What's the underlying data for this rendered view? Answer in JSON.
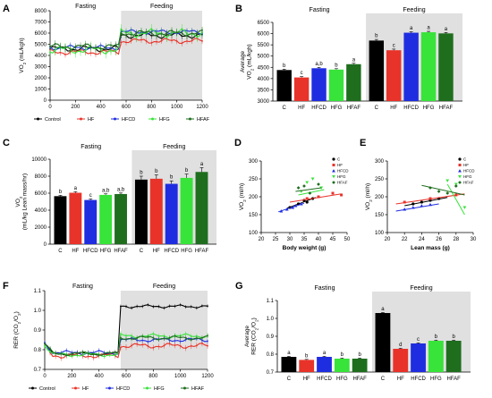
{
  "figure": {
    "panel_letters": [
      "A",
      "B",
      "C",
      "D",
      "E",
      "F",
      "G"
    ],
    "colors": {
      "Control": "#000000",
      "C": "#000000",
      "HF": "#e8332a",
      "HFCD": "#1f2de0",
      "HFG": "#38e33a",
      "HFAF": "#1e6e1e"
    }
  },
  "chart_data": [
    {
      "id": "A",
      "type": "line",
      "titles": [
        "Fasting",
        "Feeding"
      ],
      "ylabel": "VO2 (mL/kgh)",
      "ylim": [
        0,
        8000
      ],
      "yticks": [
        0,
        1000,
        2000,
        3000,
        4000,
        5000,
        6000,
        7000,
        8000
      ],
      "xlim": [
        0,
        1200
      ],
      "xticks": [
        0,
        200,
        400,
        600,
        800,
        1000,
        1200
      ],
      "shaded_from": 560,
      "legend": [
        "Control",
        "HF",
        "HFCD",
        "HFG",
        "HFAF"
      ],
      "series": [
        {
          "name": "Control",
          "base_fast": 4600,
          "base_feed": 5800,
          "err": 500
        },
        {
          "name": "HF",
          "base_fast": 4300,
          "base_feed": 5300,
          "err": 450
        },
        {
          "name": "HFCD",
          "base_fast": 4700,
          "base_feed": 6100,
          "err": 400
        },
        {
          "name": "HFG",
          "base_fast": 4500,
          "base_feed": 6000,
          "err": 700
        },
        {
          "name": "HFAF",
          "base_fast": 4800,
          "base_feed": 6000,
          "err": 500
        }
      ]
    },
    {
      "id": "B",
      "type": "bar",
      "titles": [
        "Fasting",
        "Feeding"
      ],
      "ylabel": [
        "Average",
        "VO2 (mL/kgh)"
      ],
      "ylim": [
        3000,
        6500
      ],
      "yticks": [
        3000,
        3500,
        4000,
        4500,
        5000,
        5500,
        6000,
        6500
      ],
      "categories": [
        "C",
        "HF",
        "HFCD",
        "HFG",
        "HFAF",
        "C",
        "HF",
        "HFCD",
        "HFG",
        "HFAF"
      ],
      "values": [
        4380,
        4050,
        4460,
        4400,
        4640,
        5690,
        5260,
        6040,
        6060,
        6010
      ],
      "errors": [
        40,
        40,
        40,
        40,
        40,
        50,
        50,
        40,
        40,
        40
      ],
      "labels": [
        "b",
        "c",
        "a,b",
        "b",
        "a",
        "b",
        "c",
        "a",
        "a",
        "a"
      ]
    },
    {
      "id": "C",
      "type": "bar",
      "titles": [
        "Fasting",
        "Feeding"
      ],
      "ylabel": [
        "VO2",
        "(mL/kg Lean mass/hr)"
      ],
      "ylim": [
        0,
        10000
      ],
      "yticks": [
        0,
        2000,
        4000,
        6000,
        8000,
        10000
      ],
      "categories": [
        "C",
        "HF",
        "HFCD",
        "HFG",
        "HFAF",
        "C",
        "HF",
        "HFCD",
        "HFG",
        "HFAF"
      ],
      "values": [
        5650,
        6050,
        5200,
        5800,
        5900,
        7600,
        7700,
        7100,
        7800,
        8500
      ],
      "errors": [
        100,
        120,
        120,
        120,
        120,
        400,
        450,
        350,
        450,
        500
      ],
      "labels": [
        "b",
        "a",
        "c",
        "a,b",
        "a,b",
        "b",
        "b",
        "b",
        "b",
        "a"
      ]
    },
    {
      "id": "D",
      "type": "scatter",
      "xlabel": "Body weight (g)",
      "ylabel": "VO2 (ml/h)",
      "xlim": [
        20,
        50
      ],
      "xticks": [
        20,
        25,
        30,
        35,
        40,
        45,
        50
      ],
      "ylim": [
        100,
        300
      ],
      "yticks": [
        100,
        150,
        200,
        250,
        300
      ],
      "legend": [
        "C",
        "HF",
        "HFCD",
        "HFG",
        "HFAF"
      ],
      "series": [
        {
          "name": "C",
          "points": [
            [
              30,
              170
            ],
            [
              33,
              180
            ],
            [
              35,
              190
            ],
            [
              36,
              185
            ],
            [
              38,
              195
            ]
          ],
          "line": [
            [
              29,
              168
            ],
            [
              39,
              198
            ]
          ]
        },
        {
          "name": "HF",
          "points": [
            [
              36,
              195
            ],
            [
              40,
              200
            ],
            [
              45,
              210
            ],
            [
              48,
              205
            ]
          ],
          "line": [
            [
              30,
              185
            ],
            [
              48,
              208
            ]
          ]
        },
        {
          "name": "HFCD",
          "points": [
            [
              27,
              160
            ],
            [
              29,
              165
            ],
            [
              31,
              170
            ],
            [
              32,
              175
            ],
            [
              34,
              180
            ]
          ],
          "line": [
            [
              26,
              158
            ],
            [
              35,
              182
            ]
          ]
        },
        {
          "name": "HFG",
          "points": [
            [
              34,
              215
            ],
            [
              36,
              240
            ],
            [
              38,
              250
            ],
            [
              41,
              225
            ]
          ],
          "line": [
            [
              33,
              205
            ],
            [
              42,
              220
            ]
          ]
        },
        {
          "name": "HFAF",
          "points": [
            [
              33,
              225
            ],
            [
              35,
              230
            ],
            [
              37,
              210
            ],
            [
              40,
              235
            ]
          ],
          "line": [
            [
              32,
              215
            ],
            [
              41,
              225
            ]
          ]
        }
      ]
    },
    {
      "id": "E",
      "type": "scatter",
      "xlabel": "Lean mass (g)",
      "ylabel": "VO2 (ml/h)",
      "xlim": [
        20,
        30
      ],
      "xticks": [
        20,
        22,
        24,
        26,
        28,
        30
      ],
      "ylim": [
        100,
        300
      ],
      "yticks": [
        100,
        150,
        200,
        250,
        300
      ],
      "legend": [
        "C",
        "HF",
        "HFCD",
        "HFG",
        "HFAF"
      ],
      "series": [
        {
          "name": "C",
          "points": [
            [
              23,
              180
            ],
            [
              24,
              185
            ],
            [
              25,
              190
            ],
            [
              26,
              195
            ]
          ],
          "line": [
            [
              22,
              175
            ],
            [
              27,
              198
            ]
          ]
        },
        {
          "name": "HF",
          "points": [
            [
              22,
              185
            ],
            [
              25,
              195
            ],
            [
              28,
              205
            ]
          ],
          "line": [
            [
              21,
              180
            ],
            [
              29,
              208
            ]
          ]
        },
        {
          "name": "HFCD",
          "points": [
            [
              22,
              165
            ],
            [
              23,
              170
            ],
            [
              24,
              175
            ],
            [
              25,
              178
            ]
          ],
          "line": [
            [
              21,
              160
            ],
            [
              26,
              180
            ]
          ]
        },
        {
          "name": "HFG",
          "points": [
            [
              27,
              245
            ],
            [
              28,
              235
            ],
            [
              29,
              170
            ]
          ],
          "line": [
            [
              27,
              235
            ],
            [
              29,
              150
            ]
          ]
        },
        {
          "name": "HFAF",
          "points": [
            [
              25,
              225
            ],
            [
              26,
              215
            ],
            [
              27,
              210
            ],
            [
              28,
              230
            ]
          ],
          "line": [
            [
              24,
              232
            ],
            [
              29,
              205
            ]
          ]
        }
      ]
    },
    {
      "id": "F",
      "type": "line",
      "titles": [
        "Fasting",
        "Feeding"
      ],
      "ylabel": "RER (CO2/O2)",
      "ylim": [
        0.7,
        1.1
      ],
      "yticks": [
        0.7,
        0.8,
        0.9,
        1.0,
        1.1
      ],
      "xlim": [
        0,
        1200
      ],
      "xticks": [
        0,
        200,
        400,
        600,
        800,
        1000,
        1200
      ],
      "shaded_from": 560,
      "legend": [
        "Control",
        "HF",
        "HFCD",
        "HFG",
        "HFAF"
      ],
      "series": [
        {
          "name": "Control",
          "base_fast": 0.78,
          "base_feed": 1.02,
          "err": 0.015
        },
        {
          "name": "HF",
          "base_fast": 0.77,
          "base_feed": 0.82,
          "err": 0.025
        },
        {
          "name": "HFCD",
          "base_fast": 0.785,
          "base_feed": 0.85,
          "err": 0.02
        },
        {
          "name": "HFG",
          "base_fast": 0.775,
          "base_feed": 0.87,
          "err": 0.02
        },
        {
          "name": "HFAF",
          "base_fast": 0.78,
          "base_feed": 0.86,
          "err": 0.02
        }
      ]
    },
    {
      "id": "G",
      "type": "bar",
      "titles": [
        "Fasting",
        "Feeding"
      ],
      "ylabel": [
        "Average",
        "RER (CO2/O2)"
      ],
      "ylim": [
        0.7,
        1.1
      ],
      "yticks": [
        0.7,
        0.8,
        0.9,
        1.0,
        1.1
      ],
      "categories": [
        "C",
        "HF",
        "HFCD",
        "HFG",
        "HFAF",
        "C",
        "HF",
        "HFCD",
        "HFG",
        "HFAF"
      ],
      "values": [
        0.785,
        0.768,
        0.785,
        0.775,
        0.775,
        1.03,
        0.83,
        0.86,
        0.875,
        0.875
      ],
      "errors": [
        0.003,
        0.003,
        0.003,
        0.003,
        0.003,
        0.003,
        0.003,
        0.003,
        0.003,
        0.003
      ],
      "labels": [
        "a",
        "b",
        "a",
        "b",
        "b",
        "a",
        "d",
        "c",
        "b",
        "b"
      ]
    }
  ]
}
